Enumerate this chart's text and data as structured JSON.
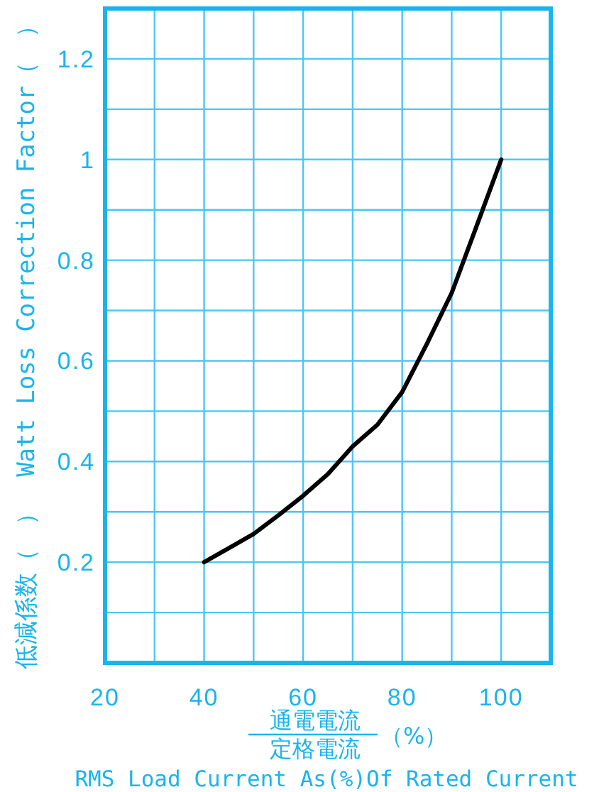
{
  "chart_data": {
    "type": "line",
    "xlabel": "RMS Load Current As(%)Of Rated Current",
    "ylabel": "低減係数（　）　Watt Loss Correction Factor（　）",
    "annotations": [
      "通電電流",
      "定格電流",
      "（%）"
    ],
    "x": [
      40,
      45,
      50,
      55,
      60,
      65,
      70,
      75,
      80,
      85,
      90,
      95,
      100
    ],
    "series": [
      {
        "color": "#000000",
        "values": [
          0.2,
          0.228,
          0.256,
          0.293,
          0.332,
          0.375,
          0.43,
          0.473,
          0.538,
          0.634,
          0.735,
          0.867,
          1.0
        ]
      }
    ],
    "xlim": [
      20,
      110
    ],
    "ylim": [
      0,
      1.3
    ],
    "xticks": [
      20,
      {
        "value": 30,
        "label": null
      },
      40,
      {
        "value": 50,
        "label": null
      },
      60,
      {
        "value": 70,
        "label": null
      },
      80,
      {
        "value": 90,
        "label": null
      },
      100
    ],
    "yticks": [
      {
        "value": 0.1,
        "label": null
      },
      0.2,
      {
        "value": 0.3,
        "label": null
      },
      0.4,
      {
        "value": 0.5,
        "label": null
      },
      0.6,
      {
        "value": 0.7,
        "label": null
      },
      0.8,
      {
        "value": 0.9,
        "label": null
      },
      1,
      {
        "value": 1.1,
        "label": null
      },
      1.2
    ],
    "grid": true,
    "line_style": "solid",
    "marker": "none"
  }
}
